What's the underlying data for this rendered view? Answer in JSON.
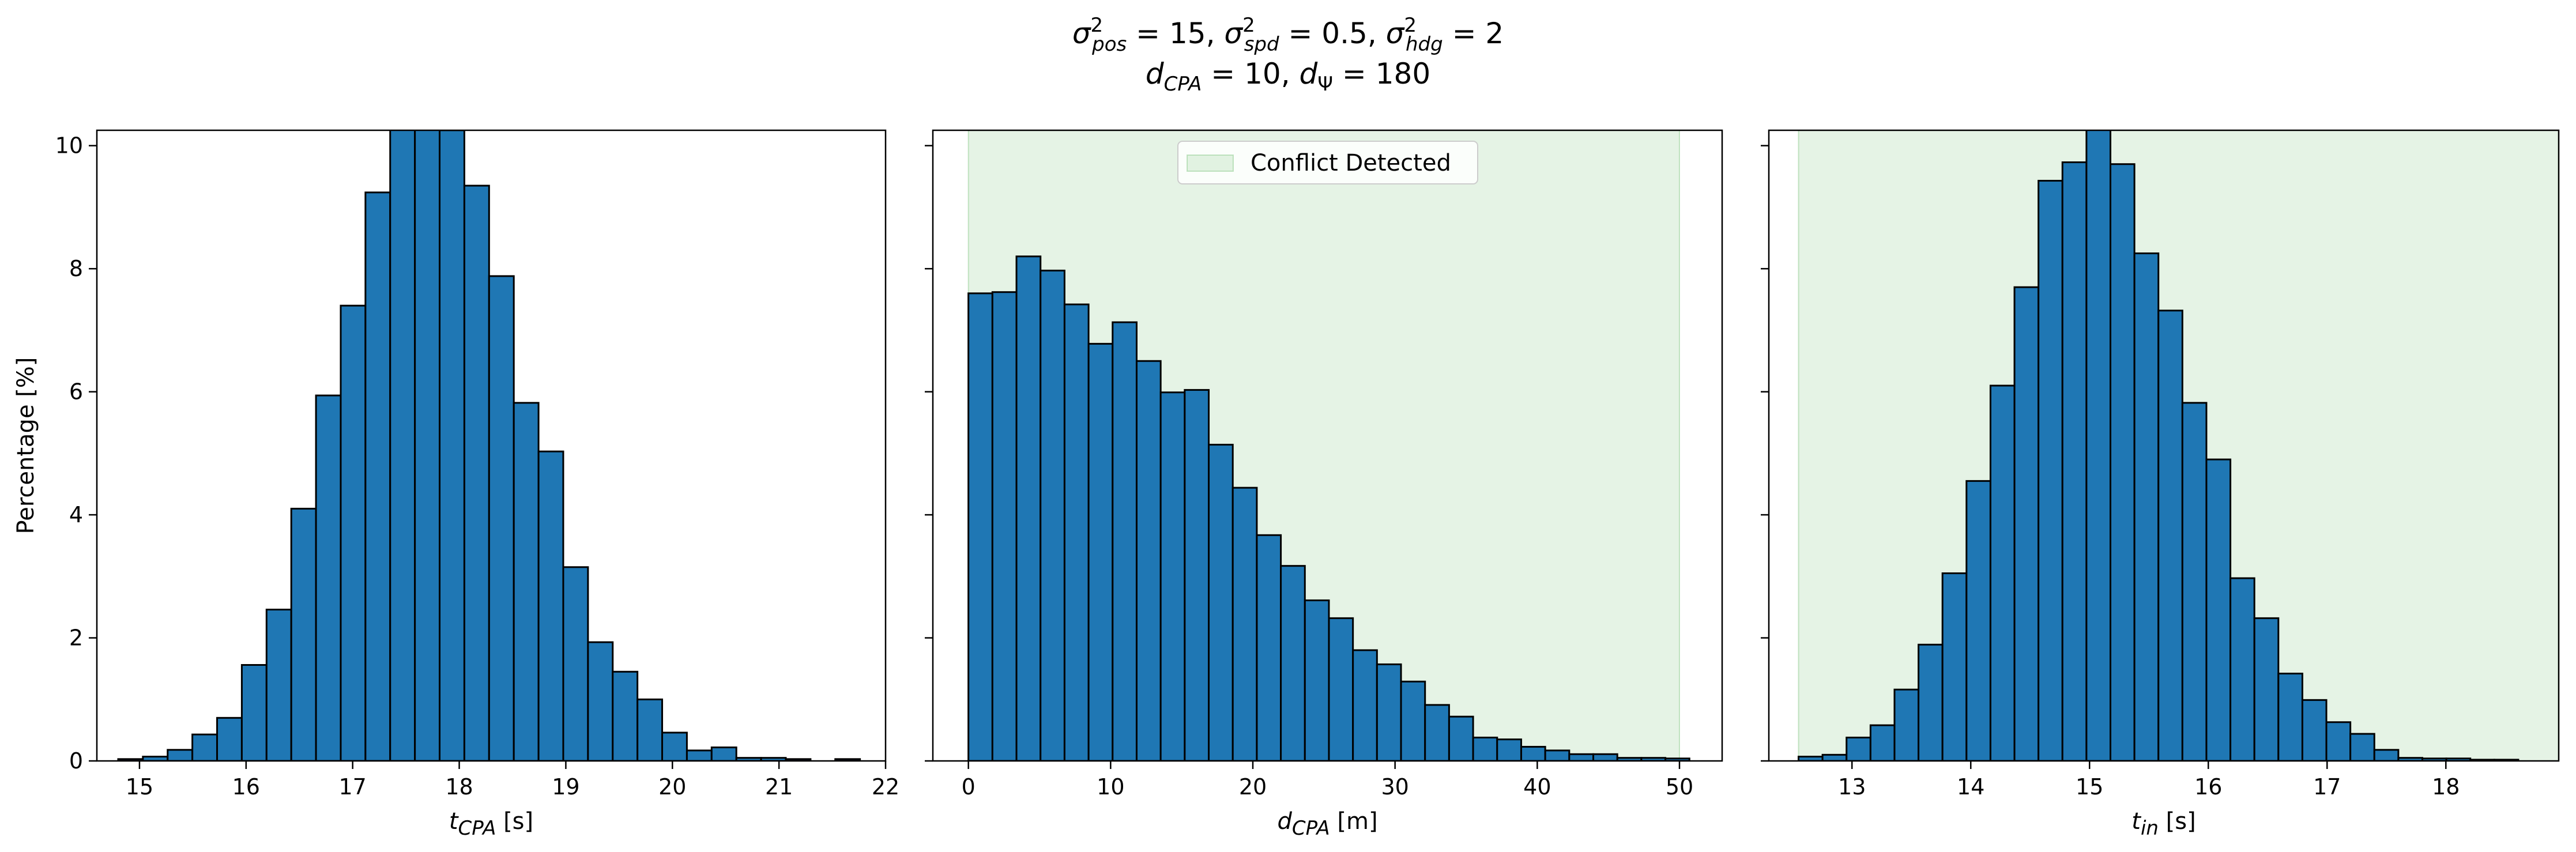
{
  "suptitle": {
    "line1": [
      {
        "sym": "σ",
        "sup": "2",
        "sub": "pos",
        "value": "= 15"
      },
      {
        "sym": "σ",
        "sup": "2",
        "sub": "spd",
        "value": "= 0.5"
      },
      {
        "sym": "σ",
        "sup": "2",
        "sub": "hdg",
        "value": "= 2"
      }
    ],
    "line2": [
      {
        "sym": "d",
        "sub": "CPA",
        "value": "= 10"
      },
      {
        "sym": "d",
        "sub": "Ψ",
        "value": "= 180"
      }
    ]
  },
  "colors": {
    "bar_fill": "#1f77b4",
    "bar_edge": "#000000",
    "shade": "#2ca02c",
    "shade_alpha": 0.12,
    "background": "#ffffff"
  },
  "chart_data": [
    {
      "type": "bar",
      "xlabel": {
        "sym": "t",
        "sub": "CPA",
        "unit": "[s]"
      },
      "ylabel": "Percentage [%]",
      "xlim": [
        14.6,
        22.0
      ],
      "ylim": [
        0,
        10.25
      ],
      "xticks": [
        15,
        16,
        17,
        18,
        19,
        20,
        21,
        22
      ],
      "yticks": [
        0,
        2,
        4,
        6,
        8,
        10
      ],
      "bin_start": 14.8,
      "bin_width": 0.232,
      "values": [
        0.03,
        0.07,
        0.18,
        0.43,
        0.7,
        1.56,
        2.46,
        4.1,
        5.94,
        7.4,
        9.24,
        10.8,
        10.7,
        10.25,
        9.35,
        7.88,
        5.82,
        5.03,
        3.15,
        1.93,
        1.45,
        1.0,
        0.46,
        0.17,
        0.22,
        0.05,
        0.05,
        0.03,
        0.0,
        0.03
      ],
      "shade": null,
      "legend": null
    },
    {
      "type": "bar",
      "xlabel": {
        "sym": "d",
        "sub": "CPA",
        "unit": "[m]"
      },
      "ylabel": "",
      "xlim": [
        -2.5,
        53.0
      ],
      "ylim": [
        0,
        10.25
      ],
      "xticks": [
        0,
        10,
        20,
        30,
        40,
        50
      ],
      "yticks": [
        0,
        2,
        4,
        6,
        8,
        10
      ],
      "bin_start": 0.0,
      "bin_width": 1.69,
      "values": [
        7.6,
        7.62,
        8.2,
        7.97,
        7.42,
        6.78,
        7.13,
        6.5,
        5.99,
        6.03,
        5.14,
        4.44,
        3.67,
        3.17,
        2.61,
        2.32,
        1.8,
        1.57,
        1.29,
        0.91,
        0.72,
        0.38,
        0.35,
        0.23,
        0.17,
        0.11,
        0.11,
        0.05,
        0.05,
        0.04
      ],
      "shade": [
        0,
        50
      ],
      "legend": {
        "label": "Conflict Detected",
        "position": "top-center"
      }
    },
    {
      "type": "bar",
      "xlabel": {
        "sym": "t",
        "sub": "in",
        "unit": "[s]"
      },
      "ylabel": "",
      "xlim": [
        12.3,
        18.95
      ],
      "ylim": [
        0,
        10.25
      ],
      "xticks": [
        13,
        14,
        15,
        16,
        17,
        18
      ],
      "yticks": [
        0,
        2,
        4,
        6,
        8,
        10
      ],
      "bin_start": 12.55,
      "bin_width": 0.202,
      "values": [
        0.07,
        0.1,
        0.38,
        0.58,
        1.16,
        1.89,
        3.05,
        4.55,
        6.1,
        7.7,
        9.43,
        9.73,
        10.35,
        9.7,
        8.25,
        7.32,
        5.82,
        4.9,
        2.97,
        2.32,
        1.42,
        0.99,
        0.63,
        0.44,
        0.18,
        0.05,
        0.04,
        0.04,
        0.02,
        0.02
      ],
      "shade": [
        12.55,
        100
      ],
      "legend": null
    }
  ]
}
